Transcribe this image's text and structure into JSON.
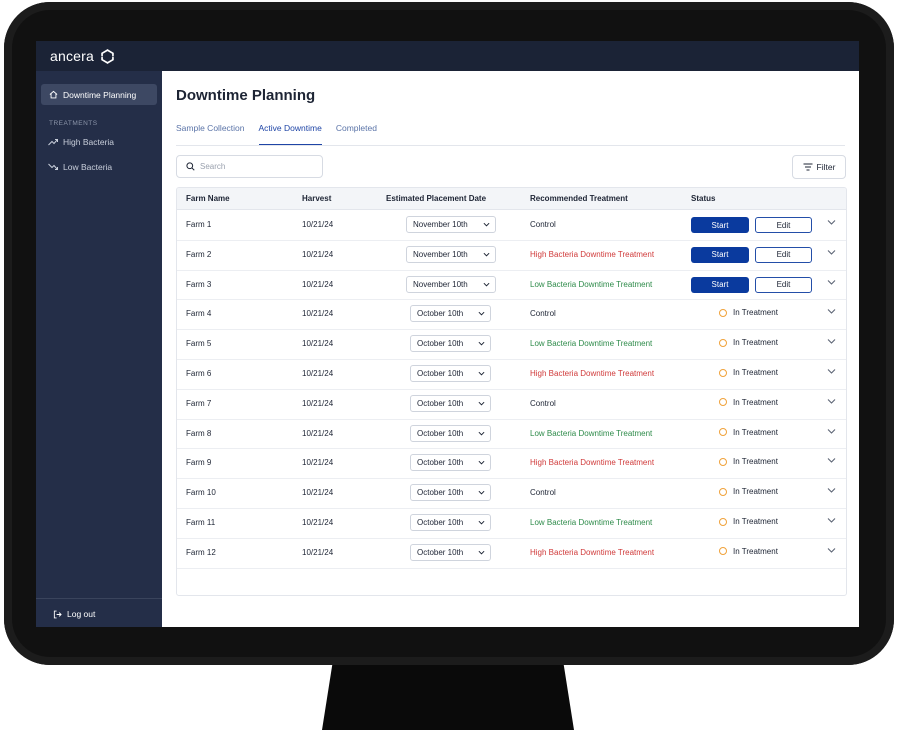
{
  "brand": {
    "name": "ancera"
  },
  "sidebar": {
    "active_item": "Downtime Planning",
    "section_label": "TREATMENTS",
    "items": [
      "High Bacteria",
      "Low Bacteria"
    ],
    "logout_label": "Log out"
  },
  "page": {
    "title": "Downtime Planning"
  },
  "tabs": [
    "Sample Collection",
    "Active Downtime",
    "Completed"
  ],
  "active_tab": "Active Downtime",
  "search": {
    "placeholder": "Search"
  },
  "filter_label": "Filter",
  "table": {
    "headers": [
      "Farm Name",
      "Harvest",
      "Estimated Placement Date",
      "Recommended Treatment",
      "Status"
    ],
    "start_label": "Start",
    "edit_label": "Edit",
    "in_treatment_label": "In Treatment",
    "rows": [
      {
        "farm": "Farm 1",
        "harvest": "10/21/24",
        "date": "November 10th",
        "treatment": "Control",
        "treatment_kind": "control",
        "status": "actions"
      },
      {
        "farm": "Farm 2",
        "harvest": "10/21/24",
        "date": "November 10th",
        "treatment": "High Bacteria Downtime Treatment",
        "treatment_kind": "high",
        "status": "actions"
      },
      {
        "farm": "Farm 3",
        "harvest": "10/21/24",
        "date": "November 10th",
        "treatment": "Low Bacteria Downtime Treatment",
        "treatment_kind": "low",
        "status": "actions"
      },
      {
        "farm": "Farm 4",
        "harvest": "10/21/24",
        "date": "October 10th",
        "treatment": "Control",
        "treatment_kind": "control",
        "status": "in_treatment"
      },
      {
        "farm": "Farm 5",
        "harvest": "10/21/24",
        "date": "October 10th",
        "treatment": "Low Bacteria Downtime Treatment",
        "treatment_kind": "low",
        "status": "in_treatment"
      },
      {
        "farm": "Farm 6",
        "harvest": "10/21/24",
        "date": "October 10th",
        "treatment": "High Bacteria Downtime Treatment",
        "treatment_kind": "high",
        "status": "in_treatment"
      },
      {
        "farm": "Farm 7",
        "harvest": "10/21/24",
        "date": "October 10th",
        "treatment": "Control",
        "treatment_kind": "control",
        "status": "in_treatment"
      },
      {
        "farm": "Farm 8",
        "harvest": "10/21/24",
        "date": "October 10th",
        "treatment": "Low Bacteria Downtime Treatment",
        "treatment_kind": "low",
        "status": "in_treatment"
      },
      {
        "farm": "Farm 9",
        "harvest": "10/21/24",
        "date": "October 10th",
        "treatment": "High Bacteria Downtime Treatment",
        "treatment_kind": "high",
        "status": "in_treatment"
      },
      {
        "farm": "Farm 10",
        "harvest": "10/21/24",
        "date": "October 10th",
        "treatment": "Control",
        "treatment_kind": "control",
        "status": "in_treatment"
      },
      {
        "farm": "Farm 11",
        "harvest": "10/21/24",
        "date": "October 10th",
        "treatment": "Low Bacteria Downtime Treatment",
        "treatment_kind": "low",
        "status": "in_treatment"
      },
      {
        "farm": "Farm 12",
        "harvest": "10/21/24",
        "date": "October 10th",
        "treatment": "High Bacteria Downtime Treatment",
        "treatment_kind": "high",
        "status": "in_treatment"
      }
    ]
  },
  "colors": {
    "high": "#d03a3a",
    "low": "#2e8b4a",
    "control": "#1d2434",
    "status_dot": "#f0a23a",
    "start_button": "#0a3a9e",
    "sidebar": "#242e48",
    "topbar": "#1b2336"
  },
  "icons": {
    "brand": "ancera-logo-icon",
    "nav_home": "home-icon",
    "high": "trending-up-icon",
    "low": "trending-down-icon",
    "logout": "logout-icon",
    "search": "search-icon",
    "filter": "filter-icon",
    "expand": "chevron-down-icon"
  }
}
